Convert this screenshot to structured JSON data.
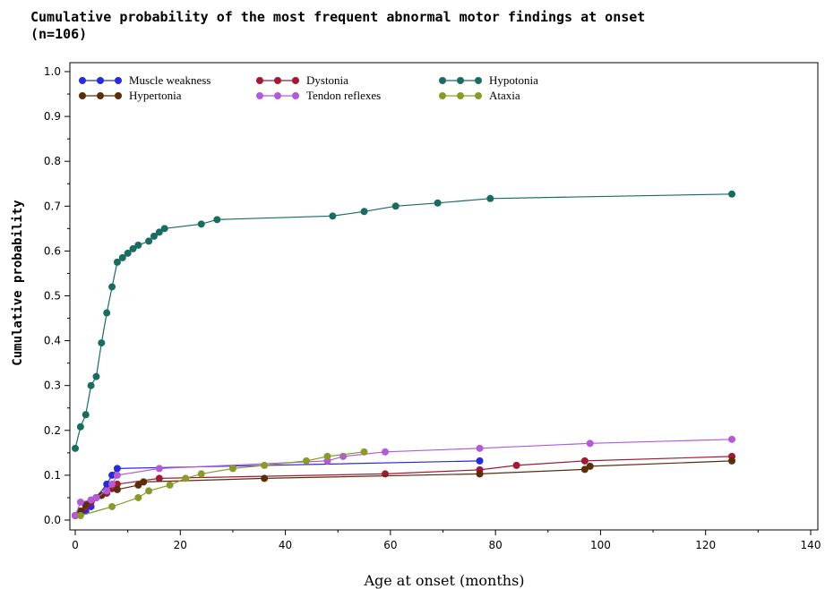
{
  "chart_data": {
    "type": "line",
    "title": "Cumulative probability of the most frequent abnormal motor findings at onset\n(n=106)",
    "xlabel": "Age at onset  (months)",
    "ylabel": "Cumulative probability",
    "xlim": [
      0,
      140
    ],
    "ylim": [
      0,
      1.0
    ],
    "xticks": [
      0,
      20,
      40,
      60,
      80,
      100,
      120,
      140
    ],
    "yticks": [
      0.0,
      0.1,
      0.2,
      0.3,
      0.4,
      0.5,
      0.6,
      0.7,
      0.8,
      0.9,
      1.0
    ],
    "grid": false,
    "legend_position": "top",
    "series": [
      {
        "name": "Muscle weakness",
        "color": "#2b2bd6",
        "x": [
          0,
          2,
          3,
          4,
          6,
          7,
          8,
          77
        ],
        "y": [
          0.01,
          0.02,
          0.03,
          0.05,
          0.08,
          0.1,
          0.115,
          0.132
        ]
      },
      {
        "name": "Dystonia",
        "color": "#a01a38",
        "x": [
          0,
          1,
          2,
          3,
          4,
          5,
          6,
          7,
          8,
          16,
          59,
          77,
          84,
          97,
          125
        ],
        "y": [
          0.01,
          0.02,
          0.03,
          0.04,
          0.05,
          0.055,
          0.06,
          0.07,
          0.08,
          0.093,
          0.103,
          0.112,
          0.122,
          0.132,
          0.142
        ]
      },
      {
        "name": "Hypotonia",
        "color": "#1a6b60",
        "x": [
          0,
          1,
          2,
          3,
          4,
          5,
          6,
          7,
          8,
          9,
          10,
          11,
          12,
          14,
          15,
          16,
          17,
          24,
          27,
          49,
          55,
          61,
          69,
          79,
          125
        ],
        "y": [
          0.16,
          0.208,
          0.235,
          0.3,
          0.32,
          0.395,
          0.462,
          0.52,
          0.575,
          0.585,
          0.595,
          0.605,
          0.613,
          0.622,
          0.633,
          0.642,
          0.65,
          0.66,
          0.67,
          0.678,
          0.688,
          0.7,
          0.707,
          0.717,
          0.727
        ]
      },
      {
        "name": "Hypertonia",
        "color": "#5a2e0a",
        "x": [
          0,
          1,
          2,
          5,
          6,
          8,
          12,
          13,
          36,
          77,
          97,
          98,
          125
        ],
        "y": [
          0.01,
          0.02,
          0.035,
          0.055,
          0.065,
          0.068,
          0.078,
          0.085,
          0.093,
          0.103,
          0.113,
          0.12,
          0.132
        ]
      },
      {
        "name": "Tendon reflexes",
        "color": "#b35ad9",
        "x": [
          0,
          1,
          3,
          4,
          6,
          7,
          8,
          16,
          48,
          51,
          59,
          77,
          98,
          125
        ],
        "y": [
          0.01,
          0.04,
          0.045,
          0.05,
          0.065,
          0.08,
          0.1,
          0.115,
          0.132,
          0.142,
          0.152,
          0.16,
          0.171,
          0.18
        ]
      },
      {
        "name": "Ataxia",
        "color": "#8a9a2a",
        "x": [
          1,
          7,
          12,
          14,
          18,
          21,
          24,
          30,
          36,
          44,
          48,
          55
        ],
        "y": [
          0.01,
          0.03,
          0.05,
          0.065,
          0.078,
          0.093,
          0.103,
          0.115,
          0.122,
          0.132,
          0.142,
          0.152
        ]
      }
    ]
  }
}
